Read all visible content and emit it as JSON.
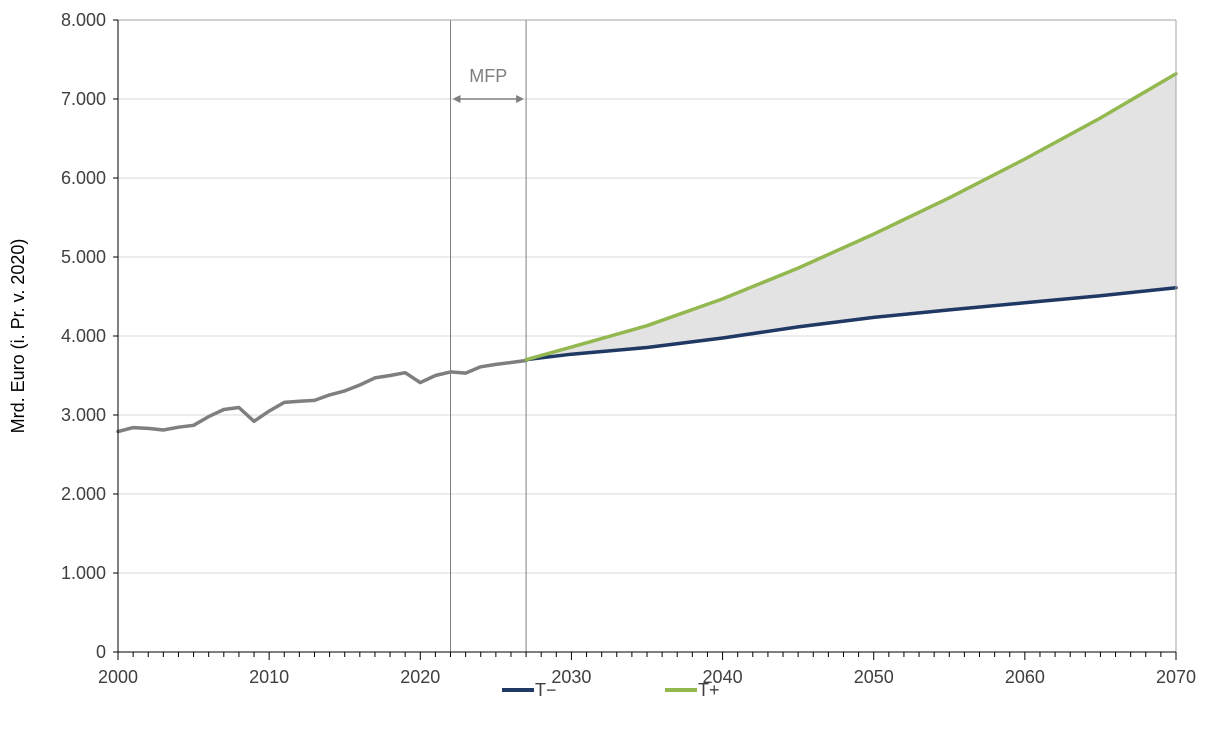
{
  "chart_data": {
    "type": "line",
    "ylabel": "Mrd. Euro (i. Pr. v. 2020)",
    "xlim": [
      2000,
      2070
    ],
    "ylim": [
      0,
      8000
    ],
    "x_ticks": [
      2000,
      2010,
      2020,
      2030,
      2040,
      2050,
      2060,
      2070
    ],
    "x_tick_labels": [
      "2000",
      "2010",
      "2020",
      "2030",
      "2040",
      "2050",
      "2060",
      "2070"
    ],
    "y_ticks": [
      0,
      1000,
      2000,
      3000,
      4000,
      5000,
      6000,
      7000,
      8000
    ],
    "y_tick_labels": [
      "0",
      "1.000",
      "2.000",
      "3.000",
      "4.000",
      "5.000",
      "6.000",
      "7.000",
      "8.000"
    ],
    "grid": "horizontal",
    "legend_position": "bottom",
    "annotation": {
      "label": "MFP",
      "x_start": 2022,
      "x_end": 2027
    },
    "band_fill": "#e3e3e3",
    "series": [
      {
        "name": "",
        "color": "#7f7f7f",
        "x": [
          2000,
          2001,
          2002,
          2003,
          2004,
          2005,
          2006,
          2007,
          2008,
          2009,
          2010,
          2011,
          2012,
          2013,
          2014,
          2015,
          2016,
          2017,
          2018,
          2019,
          2020,
          2021,
          2022,
          2023,
          2024,
          2025,
          2026,
          2027
        ],
        "values": [
          2790,
          2840,
          2830,
          2810,
          2845,
          2870,
          2980,
          3070,
          3095,
          2920,
          3050,
          3160,
          3175,
          3185,
          3255,
          3305,
          3380,
          3470,
          3500,
          3535,
          3410,
          3500,
          3545,
          3530,
          3610,
          3640,
          3665,
          3690
        ]
      },
      {
        "name": "T−",
        "color": "#1f3864",
        "x": [
          2027,
          2030,
          2035,
          2040,
          2045,
          2050,
          2055,
          2060,
          2065,
          2070
        ],
        "values": [
          3700,
          3770,
          3855,
          3975,
          4115,
          4235,
          4330,
          4420,
          4510,
          4610
        ]
      },
      {
        "name": "T+",
        "color": "#92b84f",
        "x": [
          2027,
          2030,
          2035,
          2040,
          2045,
          2050,
          2055,
          2060,
          2065,
          2070
        ],
        "values": [
          3700,
          3860,
          4130,
          4470,
          4860,
          5290,
          5750,
          6240,
          6760,
          7320
        ]
      }
    ]
  }
}
